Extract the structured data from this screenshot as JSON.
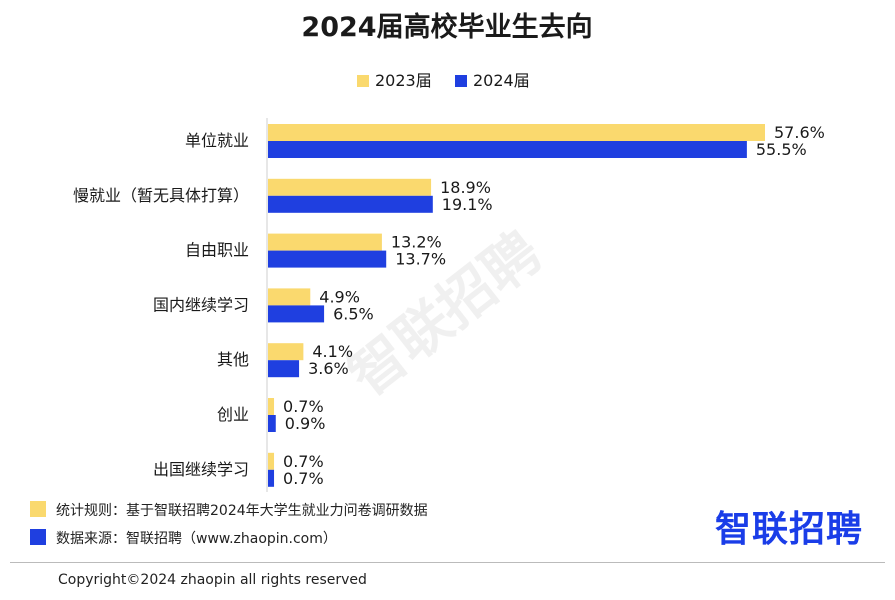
{
  "chart_data": {
    "type": "bar",
    "orientation": "horizontal",
    "title": "2024届高校毕业生去向",
    "categories": [
      "单位就业",
      "慢就业（暂无具体打算）",
      "自由职业",
      "国内继续学习",
      "其他",
      "创业",
      "出国继续学习"
    ],
    "series": [
      {
        "name": "2023届",
        "color": "#FAD96E",
        "values": [
          57.6,
          18.9,
          13.2,
          4.9,
          4.1,
          0.7,
          0.7
        ]
      },
      {
        "name": "2024届",
        "color": "#1F3FE0",
        "values": [
          55.5,
          19.1,
          13.7,
          6.5,
          3.6,
          0.9,
          0.7
        ]
      }
    ],
    "value_labels": [
      [
        "57.6%",
        "18.9%",
        "13.2%",
        "4.9%",
        "4.1%",
        "0.7%",
        "0.7%"
      ],
      [
        "55.5%",
        "19.1%",
        "13.7%",
        "6.5%",
        "3.6%",
        "0.9%",
        "0.7%"
      ]
    ],
    "xlim": [
      0,
      60
    ],
    "legend_position": "top-center",
    "grid": false
  },
  "footnotes": {
    "rule_text": "统计规则：基于智联招聘2024年大学生就业力问卷调研数据",
    "source_text": "数据来源：智联招聘（www.zhaopin.com）"
  },
  "logo_text": "智联招聘",
  "watermark_text": "智联招聘",
  "copyright": "Copyright©2024 zhaopin all rights reserved"
}
